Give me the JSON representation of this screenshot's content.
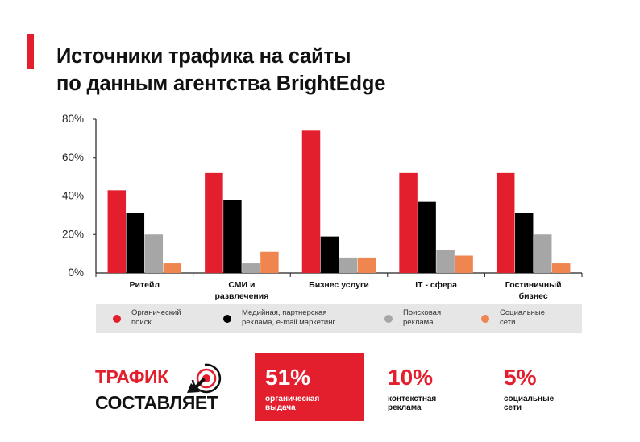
{
  "title": {
    "line1": "Источники трафика на сайты",
    "line2": "по данным агентства BrightEdge"
  },
  "colors": {
    "accent": "#e31e2d",
    "organic": "#e31e2d",
    "media": "#000000",
    "search": "#a6a6a6",
    "social": "#ef8650"
  },
  "chart_data": {
    "type": "bar",
    "categories": [
      [
        "Ритейл"
      ],
      [
        "СМИ и",
        "развлечения"
      ],
      [
        "Бизнес услуги"
      ],
      [
        "IT - сфера"
      ],
      [
        "Гостиничный",
        "бизнес"
      ]
    ],
    "y_ticks": [
      "0%",
      "20%",
      "40%",
      "60%",
      "80%"
    ],
    "ylim": [
      0,
      80
    ],
    "series": [
      {
        "name": "Органический поиск",
        "color": "#e31e2d",
        "values": [
          43,
          52,
          74,
          52,
          52
        ]
      },
      {
        "name": "Медийная, партнерская реклама, e-mail маркетинг",
        "color": "#000000",
        "values": [
          31,
          38,
          19,
          37,
          31
        ]
      },
      {
        "name": "Поисковая реклама",
        "color": "#a6a6a6",
        "values": [
          20,
          5,
          8,
          12,
          20
        ]
      },
      {
        "name": "Социальные сети",
        "color": "#ef8650",
        "values": [
          5,
          11,
          8,
          9,
          5
        ]
      }
    ],
    "grid": false,
    "legend_position": "bottom"
  },
  "legend": [
    {
      "lines": [
        "Органический",
        "поиск"
      ],
      "color": "#e31e2d"
    },
    {
      "lines": [
        "Медийная, партнерская",
        "реклама, e-mail маркетинг"
      ],
      "color": "#000000"
    },
    {
      "lines": [
        "Поисковая",
        "реклама"
      ],
      "color": "#a6a6a6"
    },
    {
      "lines": [
        "Социальные",
        "сети"
      ],
      "color": "#ef8650"
    }
  ],
  "bottom": {
    "word1": "ТРАФИК",
    "word2": "СОСТАВЛЯЕТ",
    "icon": "target-arrow-icon",
    "stats": [
      {
        "value": "51%",
        "lines": [
          "органическая",
          "выдача"
        ],
        "highlight": true
      },
      {
        "value": "10%",
        "lines": [
          "контекстная",
          "реклама"
        ],
        "highlight": false
      },
      {
        "value": "5%",
        "lines": [
          "социальные",
          "сети"
        ],
        "highlight": false
      }
    ]
  }
}
